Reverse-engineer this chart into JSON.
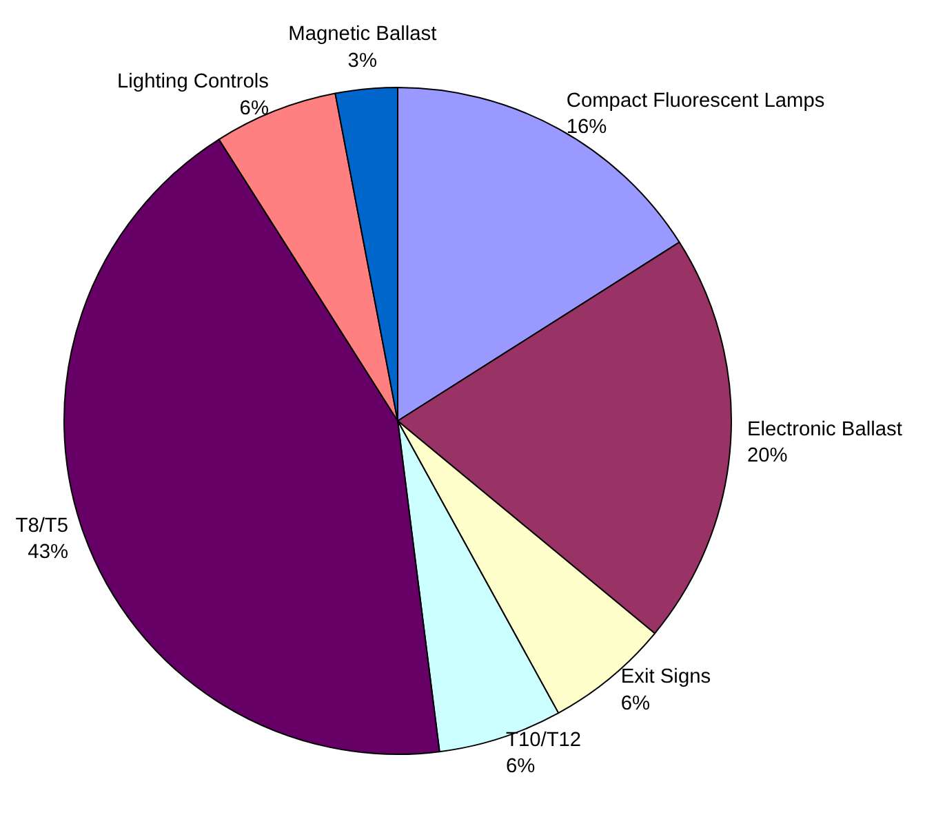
{
  "chart_data": {
    "type": "pie",
    "categories": [
      "Compact Fluorescent Lamps",
      "Electronic Ballast",
      "Exit Signs",
      "T10/T12",
      "T8/T5",
      "Lighting Controls",
      "Magnetic Ballast"
    ],
    "values": [
      16,
      20,
      6,
      6,
      43,
      6,
      3
    ],
    "value_labels": [
      "16%",
      "20%",
      "6%",
      "6%",
      "43%",
      "6%",
      "3%"
    ],
    "colors": [
      "#9999ff",
      "#993366",
      "#ffffcc",
      "#ccffff",
      "#660066",
      "#ff8080",
      "#0066cc"
    ]
  }
}
